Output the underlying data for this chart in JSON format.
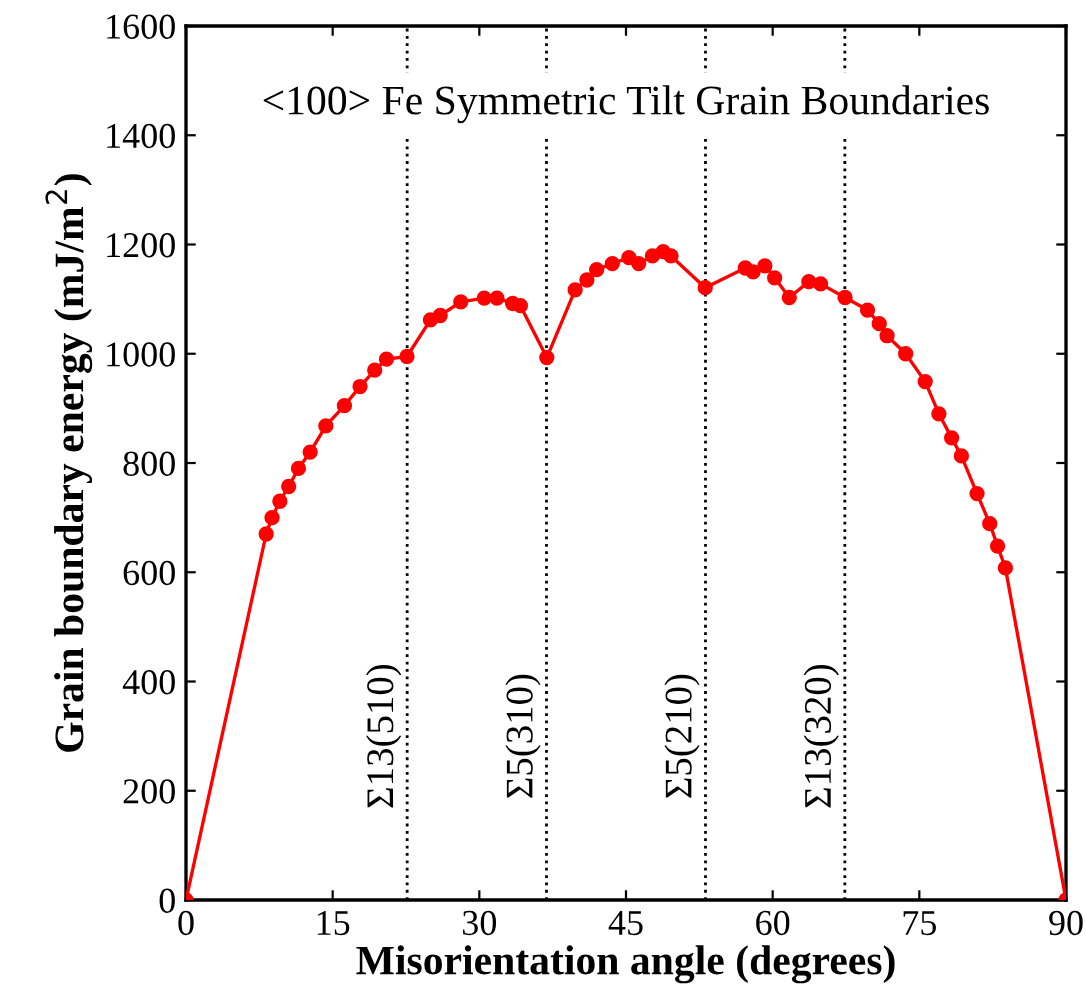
{
  "chart_data": {
    "type": "line",
    "title": "<100> Fe Symmetric Tilt Grain Boundaries",
    "xlabel": "Misorientation angle (degrees)",
    "ylabel": "Grain boundary energy (mJ/m$^{2}$)",
    "xlim": [
      0,
      90
    ],
    "ylim": [
      0,
      1600
    ],
    "xticks": [
      0,
      15,
      30,
      45,
      60,
      75,
      90
    ],
    "yticks": [
      0,
      200,
      400,
      600,
      800,
      1000,
      1200,
      1400,
      1600
    ],
    "grid": false,
    "marker": "circle",
    "line_style": "solid",
    "series": [
      {
        "color": "#ff0000",
        "x": [
          0,
          8.2,
          8.8,
          9.6,
          10.5,
          11.5,
          12.7,
          14.3,
          16.2,
          17.8,
          19.3,
          20.5,
          22.6,
          25,
          26,
          28.1,
          30.5,
          31.8,
          33.4,
          34.2,
          36.9,
          39.8,
          41,
          42,
          43.6,
          45.3,
          46.3,
          47.7,
          48.8,
          49.6,
          53.1,
          57.2,
          58,
          59.2,
          60.2,
          61.7,
          63.7,
          64.9,
          67.4,
          69.7,
          70.9,
          71.7,
          73.6,
          75.6,
          77,
          78.3,
          79.3,
          80.9,
          82.2,
          83,
          83.8,
          90
        ],
        "values": [
          0,
          670,
          700,
          730,
          757,
          790,
          820,
          868,
          905,
          940,
          970,
          990,
          995,
          1062,
          1070,
          1095,
          1102,
          1102,
          1092,
          1088,
          993,
          1117,
          1135,
          1154,
          1165,
          1176,
          1165,
          1179,
          1187,
          1179,
          1121,
          1157,
          1150,
          1161,
          1139,
          1103,
          1132,
          1128,
          1103,
          1080,
          1055,
          1033,
          1000,
          949,
          890,
          846,
          813,
          744,
          689,
          648,
          608,
          0
        ]
      }
    ],
    "ref_lines": [
      {
        "axis": "x",
        "value": 22.62,
        "label": "Σ13(510)",
        "color": "#000000",
        "line_style": "dotted"
      },
      {
        "axis": "x",
        "value": 36.87,
        "label": "Σ5(310)",
        "color": "#000000",
        "line_style": "dotted"
      },
      {
        "axis": "x",
        "value": 53.13,
        "label": "Σ5(210)",
        "color": "#000000",
        "line_style": "dotted"
      },
      {
        "axis": "x",
        "value": 67.38,
        "label": "Σ13(320)",
        "color": "#000000",
        "line_style": "dotted"
      }
    ]
  }
}
